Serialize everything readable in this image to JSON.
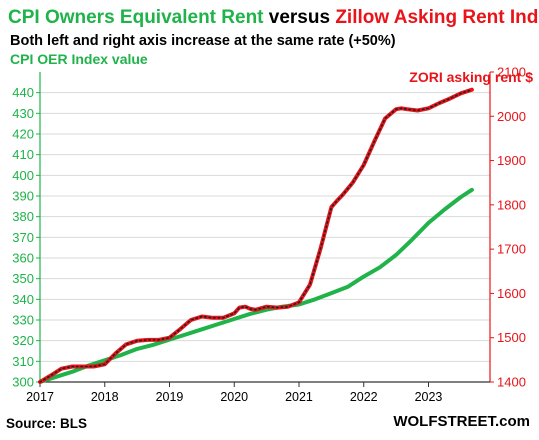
{
  "chart_data": {
    "type": "line",
    "title_parts": [
      {
        "text": "CPI Owners Equivalent Rent",
        "color": "#1fb34a"
      },
      {
        "text": " versus ",
        "color": "#000000"
      },
      {
        "text": "Zillow Asking Rent Index",
        "color": "#e8141a"
      }
    ],
    "subtitle": "Both left and right axis increase at the same rate (+50%)",
    "ylabel_left": "CPI OER  Index value",
    "ylabel_right": "ZORI asking rent $",
    "ylim_left": [
      300,
      450
    ],
    "ylim_right": [
      1400,
      2100
    ],
    "yticks_left": [
      "300",
      "310",
      "320",
      "330",
      "340",
      "350",
      "360",
      "370",
      "380",
      "390",
      "400",
      "410",
      "420",
      "430",
      "440"
    ],
    "yticks_right": [
      "1400",
      "1500",
      "1600",
      "1700",
      "1800",
      "1900",
      "2000",
      "2100"
    ],
    "xlim": [
      2017.0,
      2023.95
    ],
    "xticks": [
      "2017",
      "2018",
      "2019",
      "2020",
      "2021",
      "2022",
      "2023"
    ],
    "source": "Source: BLS",
    "brand": "WOLFSTREET.com",
    "colors": {
      "oer": "#1fb34a",
      "zori": "#e8141a",
      "zori_dots": "#222222",
      "grid": "#d9d9d9"
    },
    "series": [
      {
        "key": "oer",
        "axis": "left",
        "x": [
          2017.0,
          2017.25,
          2017.5,
          2017.75,
          2018.0,
          2018.25,
          2018.5,
          2018.75,
          2019.0,
          2019.25,
          2019.5,
          2019.75,
          2020.0,
          2020.25,
          2020.5,
          2020.75,
          2021.0,
          2021.25,
          2021.5,
          2021.75,
          2022.0,
          2022.25,
          2022.5,
          2022.75,
          2023.0,
          2023.25,
          2023.5,
          2023.67
        ],
        "values": [
          300.0,
          302.5,
          305.0,
          308.0,
          310.5,
          313.0,
          316.0,
          318.0,
          320.5,
          323.0,
          325.5,
          328.0,
          330.5,
          333.0,
          335.0,
          336.5,
          337.5,
          340.0,
          343.0,
          346.0,
          351.0,
          355.5,
          361.5,
          369.0,
          377.0,
          383.5,
          389.5,
          393.0
        ]
      },
      {
        "key": "zori",
        "axis": "right",
        "x": [
          2017.0,
          2017.17,
          2017.33,
          2017.5,
          2017.67,
          2017.83,
          2018.0,
          2018.17,
          2018.33,
          2018.5,
          2018.67,
          2018.83,
          2019.0,
          2019.17,
          2019.33,
          2019.5,
          2019.67,
          2019.83,
          2020.0,
          2020.08,
          2020.17,
          2020.25,
          2020.33,
          2020.5,
          2020.67,
          2020.83,
          2021.0,
          2021.17,
          2021.33,
          2021.5,
          2021.58,
          2021.67,
          2021.83,
          2022.0,
          2022.17,
          2022.33,
          2022.5,
          2022.58,
          2022.67,
          2022.83,
          2023.0,
          2023.17,
          2023.33,
          2023.5,
          2023.67
        ],
        "values": [
          1400,
          1415,
          1430,
          1435,
          1435,
          1435,
          1440,
          1465,
          1485,
          1493,
          1495,
          1495,
          1500,
          1520,
          1540,
          1548,
          1545,
          1545,
          1555,
          1568,
          1570,
          1565,
          1563,
          1570,
          1568,
          1570,
          1580,
          1620,
          1700,
          1795,
          1808,
          1822,
          1850,
          1890,
          1945,
          1995,
          2016,
          2018,
          2016,
          2013,
          2018,
          2030,
          2040,
          2052,
          2060
        ]
      }
    ]
  }
}
